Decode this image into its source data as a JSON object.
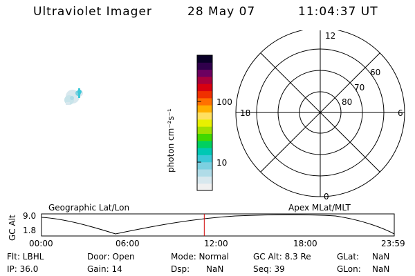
{
  "header": {
    "title": "Ultraviolet Imager",
    "date": "28 May 07",
    "time": "11:04:37 UT"
  },
  "colorbar": {
    "label": "photon cm⁻²s⁻¹",
    "ticks": [
      "100",
      "10"
    ],
    "colors": [
      "#f0f0f0",
      "#d8e8ee",
      "#b0dce8",
      "#7cd0e0",
      "#3cc8d8",
      "#00c8b4",
      "#00d060",
      "#40d800",
      "#a0e000",
      "#e8f000",
      "#ffe060",
      "#ffb000",
      "#ff7000",
      "#f03000",
      "#d80010",
      "#a8003c",
      "#6c0060",
      "#30004c",
      "#0a0028"
    ]
  },
  "polar": {
    "mlt_labels": [
      "12",
      "18",
      "6",
      "0"
    ],
    "lat_labels": [
      "60",
      "70",
      "80"
    ],
    "lat_rings": [
      60,
      70,
      80
    ],
    "min_lat": 50
  },
  "timeline": {
    "left_label": "Geographic Lat/Lon",
    "right_label": "Apex MLat/MLT",
    "y_axis_label": "GC Alt",
    "y_ticks": [
      "9.0",
      "1.8"
    ],
    "x_ticks": [
      "00:00",
      "06:00",
      "12:00",
      "18:00",
      "23:59"
    ],
    "current_time_fraction": 0.4614
  },
  "info": {
    "flt": "Flt: LBHL",
    "ip": "IP: 36.0",
    "door": "Door: Open",
    "gain": "Gain: 14",
    "mode": "Mode: Normal",
    "dsp_label": "Dsp:",
    "dsp_value": "NaN",
    "gcalt": "GC Alt: 8.3 Re",
    "seq": "Seq: 39",
    "glat_label": "GLat:",
    "glat_value": "NaN",
    "glon_label": "GLon:",
    "glon_value": "NaN"
  }
}
